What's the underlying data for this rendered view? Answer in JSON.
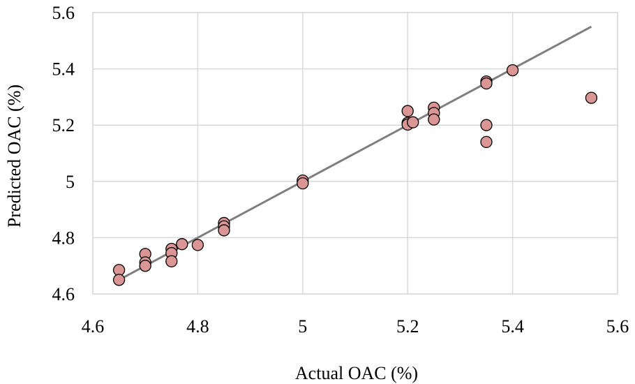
{
  "chart_data": {
    "type": "scatter",
    "title": "",
    "xlabel": "Actual OAC (%)",
    "ylabel": "Predicted OAC (%)",
    "xlim": [
      4.6,
      5.6
    ],
    "ylim": [
      4.6,
      5.6
    ],
    "xticks": [
      4.6,
      4.8,
      5.0,
      5.2,
      5.4,
      5.6
    ],
    "yticks": [
      4.6,
      4.8,
      5.0,
      5.2,
      5.4,
      5.6
    ],
    "xtick_labels": [
      "4.6",
      "4.8",
      "5",
      "5.2",
      "5.4",
      "5.6"
    ],
    "ytick_labels": [
      "4.6",
      "4.8",
      "5",
      "5.2",
      "5.4",
      "5.6"
    ],
    "grid": true,
    "legend": "none",
    "marker_color": "#d99694",
    "marker_edge_color": "#000000",
    "line_color": "#7f7f7f",
    "reference_line": {
      "x": [
        4.65,
        5.55
      ],
      "y": [
        4.65,
        5.55
      ]
    },
    "points": [
      {
        "x": 4.65,
        "y": 4.685
      },
      {
        "x": 4.65,
        "y": 4.65
      },
      {
        "x": 4.7,
        "y": 4.742
      },
      {
        "x": 4.7,
        "y": 4.712
      },
      {
        "x": 4.7,
        "y": 4.7
      },
      {
        "x": 4.75,
        "y": 4.76
      },
      {
        "x": 4.75,
        "y": 4.745
      },
      {
        "x": 4.75,
        "y": 4.716
      },
      {
        "x": 4.77,
        "y": 4.777
      },
      {
        "x": 4.8,
        "y": 4.774
      },
      {
        "x": 4.85,
        "y": 4.852
      },
      {
        "x": 4.85,
        "y": 4.84
      },
      {
        "x": 4.85,
        "y": 4.826
      },
      {
        "x": 5.0,
        "y": 5.003
      },
      {
        "x": 5.0,
        "y": 4.993
      },
      {
        "x": 5.2,
        "y": 5.25
      },
      {
        "x": 5.2,
        "y": 5.208
      },
      {
        "x": 5.2,
        "y": 5.202
      },
      {
        "x": 5.21,
        "y": 5.21
      },
      {
        "x": 5.25,
        "y": 5.262
      },
      {
        "x": 5.25,
        "y": 5.243
      },
      {
        "x": 5.25,
        "y": 5.22
      },
      {
        "x": 5.35,
        "y": 5.355
      },
      {
        "x": 5.35,
        "y": 5.348
      },
      {
        "x": 5.35,
        "y": 5.2
      },
      {
        "x": 5.35,
        "y": 5.14
      },
      {
        "x": 5.4,
        "y": 5.395
      },
      {
        "x": 5.55,
        "y": 5.297
      }
    ]
  }
}
